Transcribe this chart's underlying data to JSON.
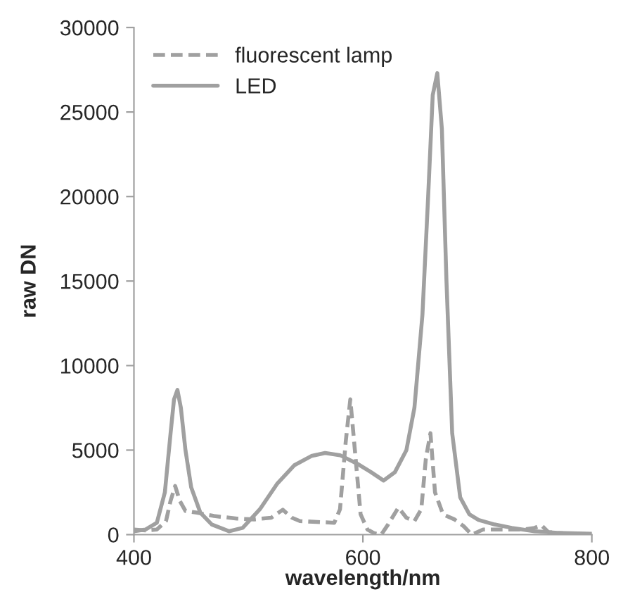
{
  "chart_data": {
    "type": "line",
    "xlabel": "wavelength/nm",
    "ylabel": "raw DN",
    "xlim": [
      400,
      800
    ],
    "xticks": [
      400,
      600,
      800
    ],
    "ylim": [
      0,
      30000
    ],
    "yticks": [
      0,
      5000,
      10000,
      15000,
      20000,
      25000,
      30000
    ],
    "grid": false,
    "legend": "top left",
    "marker": "none",
    "series": [
      {
        "name": "fluorescent lamp",
        "color": "#a0a0a0",
        "line_style": "dashed",
        "x": [
          400,
          410,
          420,
          428,
          432,
          436,
          440,
          445,
          455,
          470,
          490,
          505,
          520,
          530,
          538,
          545,
          560,
          575,
          580,
          585,
          589,
          593,
          598,
          604,
          610,
          616,
          622,
          631,
          638,
          645,
          651,
          655,
          659,
          663,
          670,
          680,
          688,
          695,
          705,
          720,
          740,
          750,
          756,
          762,
          775,
          790,
          800
        ],
        "values": [
          300,
          250,
          300,
          800,
          2000,
          2880,
          2000,
          1400,
          1300,
          1100,
          950,
          900,
          1000,
          1470,
          1000,
          800,
          750,
          700,
          1500,
          5500,
          8000,
          5000,
          1200,
          300,
          80,
          0,
          600,
          1600,
          1000,
          800,
          1500,
          4500,
          6000,
          2500,
          1200,
          900,
          500,
          0,
          300,
          300,
          300,
          400,
          550,
          150,
          80,
          30,
          0
        ]
      },
      {
        "name": "LED",
        "color": "#a0a0a0",
        "line_style": "solid",
        "x": [
          400,
          410,
          420,
          427,
          432,
          435,
          438,
          441,
          445,
          450,
          458,
          468,
          483,
          495,
          510,
          525,
          540,
          555,
          567,
          580,
          595,
          607,
          618,
          628,
          638,
          645,
          652,
          657,
          661,
          665,
          669,
          673,
          678,
          685,
          693,
          701,
          715,
          730,
          750,
          770,
          800
        ],
        "values": [
          200,
          300,
          700,
          2500,
          6000,
          8000,
          8560,
          7500,
          5000,
          2800,
          1300,
          600,
          200,
          400,
          1500,
          3000,
          4100,
          4650,
          4830,
          4700,
          4200,
          3700,
          3200,
          3700,
          5000,
          7500,
          13000,
          20000,
          26000,
          27300,
          24000,
          15000,
          6000,
          2200,
          1200,
          870,
          600,
          400,
          200,
          100,
          50
        ]
      }
    ]
  }
}
